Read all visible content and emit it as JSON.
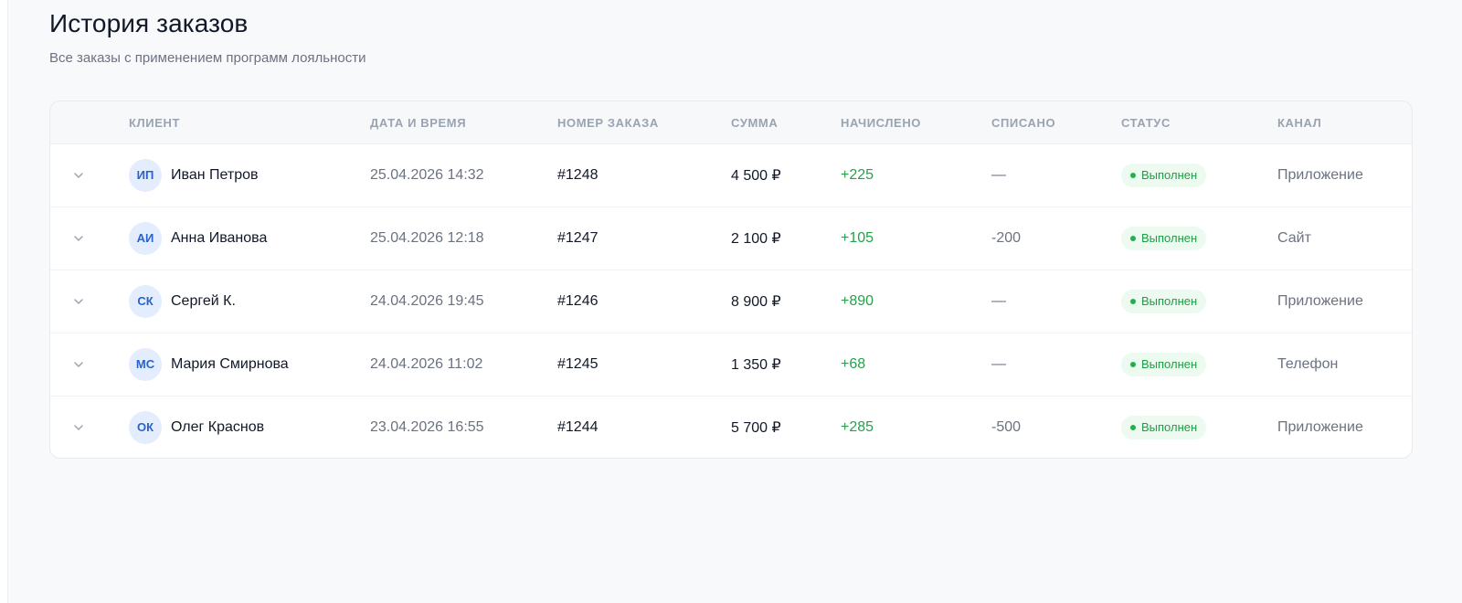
{
  "page": {
    "title": "История заказов",
    "subtitle": "Все заказы с применением программ лояльности"
  },
  "table": {
    "headers": {
      "client": "КЛИЕНТ",
      "datetime": "ДАТА И ВРЕМЯ",
      "order_number": "НОМЕР ЗАКАЗА",
      "sum": "СУММА",
      "earned": "НАЧИСЛЕНО",
      "spent": "СПИСАНО",
      "status": "СТАТУС",
      "channel": "КАНАЛ"
    },
    "rows": [
      {
        "initials": "ИП",
        "name": "Иван Петров",
        "datetime": "25.04.2026 14:32",
        "order": "#1248",
        "sum": "4 500 ₽",
        "earned": "+225",
        "spent": "—",
        "status": "Выполнен",
        "channel": "Приложение"
      },
      {
        "initials": "АИ",
        "name": "Анна Иванова",
        "datetime": "25.04.2026 12:18",
        "order": "#1247",
        "sum": "2 100 ₽",
        "earned": "+105",
        "spent": "-200",
        "status": "Выполнен",
        "channel": "Сайт"
      },
      {
        "initials": "СК",
        "name": "Сергей К.",
        "datetime": "24.04.2026 19:45",
        "order": "#1246",
        "sum": "8 900 ₽",
        "earned": "+890",
        "spent": "—",
        "status": "Выполнен",
        "channel": "Приложение"
      },
      {
        "initials": "МС",
        "name": "Мария Смирнова",
        "datetime": "24.04.2026 11:02",
        "order": "#1245",
        "sum": "1 350 ₽",
        "earned": "+68",
        "spent": "—",
        "status": "Выполнен",
        "channel": "Телефон"
      },
      {
        "initials": "ОК",
        "name": "Олег Краснов",
        "datetime": "23.04.2026 16:55",
        "order": "#1244",
        "sum": "5 700 ₽",
        "earned": "+285",
        "spent": "-500",
        "status": "Выполнен",
        "channel": "Приложение"
      }
    ]
  },
  "icons": {
    "row_expand": "chevron-down-icon",
    "status_dot": "status-dot-icon"
  },
  "colors": {
    "accent_earned": "#22a34a",
    "status_bg": "#ecfaf0",
    "status_text": "#1f9d47",
    "avatar_bg": "#e3edfd",
    "avatar_text": "#2b62c9"
  }
}
